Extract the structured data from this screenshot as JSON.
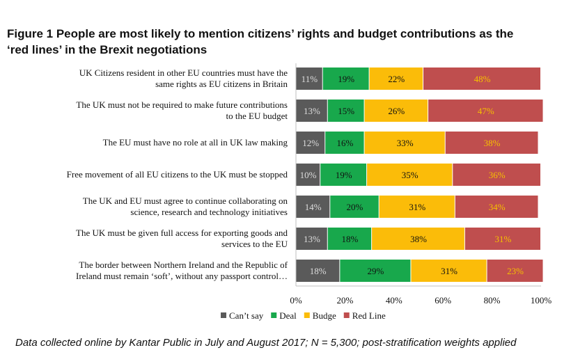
{
  "chart_data": {
    "type": "bar",
    "orientation": "horizontal",
    "stacked": true,
    "title_line1": "Figure 1 People are most likely to mention citizens’ rights and budget contributions  as the",
    "title_line2": "‘red lines’ in the Brexit negotiations",
    "categories": [
      [
        "UK Citizens resident in other EU countries must have the",
        "same rights as EU citizens in Britain"
      ],
      [
        "The UK must not be required to make future contributions",
        "to the EU budget"
      ],
      [
        "The EU must have no role at all in UK law making"
      ],
      [
        "Free movement of all EU citizens to the UK must be stopped"
      ],
      [
        "The UK and EU must agree to continue collaborating on",
        "science,  research and technology initiatives"
      ],
      [
        "The UK must be given full access for exporting goods and",
        "services to the EU"
      ],
      [
        "The border between Northern Ireland and the Republic of",
        "Ireland must remain ‘soft’, without any  passport control…"
      ]
    ],
    "series": [
      {
        "name": "Can’t say",
        "color": "#5a5a5a",
        "label_color": "#dddddd",
        "values": [
          11,
          13,
          12,
          10,
          14,
          13,
          18
        ]
      },
      {
        "name": "Deal",
        "color": "#18a84c",
        "label_color": "#111111",
        "values": [
          19,
          15,
          16,
          19,
          20,
          18,
          29
        ]
      },
      {
        "name": "Budge",
        "color": "#fbbc09",
        "label_color": "#111111",
        "values": [
          22,
          26,
          33,
          35,
          31,
          38,
          31
        ]
      },
      {
        "name": "Red Line",
        "color": "#bf4e4e",
        "label_color": "#f6c000",
        "values": [
          48,
          47,
          38,
          36,
          34,
          31,
          23
        ]
      }
    ],
    "value_suffix": "%",
    "xlim": [
      0,
      100
    ],
    "xticks": [
      "0%",
      "20%",
      "40%",
      "60%",
      "80%",
      "100%"
    ],
    "legend_position": "bottom"
  },
  "footnote": "Data collected online by Kantar Public in July and August 2017; N = 5,300; post-stratification weights applied"
}
